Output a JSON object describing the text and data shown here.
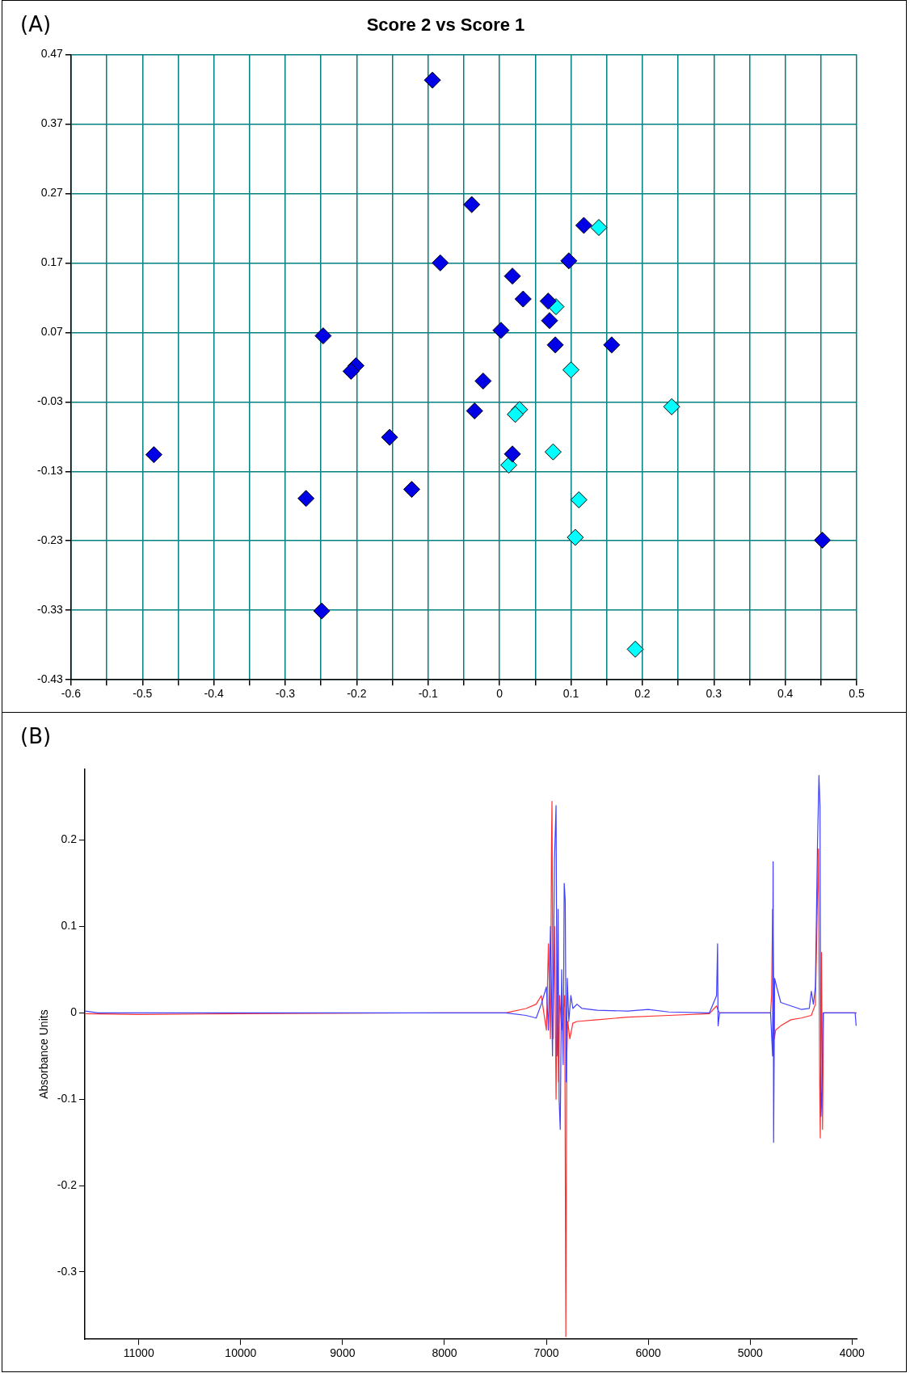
{
  "chart_data": [
    {
      "type": "scatter",
      "title": "Score 2 vs Score 1",
      "annotations": [
        "(A)"
      ],
      "marker": "diamond",
      "grid": true,
      "legend": false,
      "xlim": [
        -0.6,
        0.5
      ],
      "ylim": [
        -0.43,
        0.47
      ],
      "xticks": [
        -0.6,
        {
          "value": -0.55,
          "label": null
        },
        -0.5,
        {
          "value": -0.45,
          "label": null
        },
        -0.4,
        {
          "value": -0.35,
          "label": null
        },
        -0.3,
        {
          "value": -0.25,
          "label": null
        },
        -0.2,
        {
          "value": -0.15,
          "label": null
        },
        -0.1,
        {
          "value": -0.05,
          "label": null
        },
        0,
        {
          "value": 0.05,
          "label": null
        },
        0.1,
        {
          "value": 0.15,
          "label": null
        },
        0.2,
        {
          "value": 0.25,
          "label": null
        },
        0.3,
        {
          "value": 0.35,
          "label": null
        },
        0.4,
        {
          "value": 0.45,
          "label": null
        },
        0.5
      ],
      "yticks": [
        -0.43,
        -0.33,
        -0.23,
        -0.13,
        -0.03,
        0.07,
        0.17,
        0.27,
        0.37,
        0.47
      ],
      "series": [
        {
          "color": "#0000e6",
          "x": [
            -0.094,
            -0.039,
            -0.083,
            0.118,
            0.097,
            0.018,
            0.033,
            0.068,
            0.07,
            0.002,
            0.078,
            0.157,
            -0.247,
            -0.201,
            -0.208,
            -0.023,
            -0.035,
            -0.154,
            0.018,
            -0.484,
            -0.123,
            -0.271,
            0.452,
            -0.249
          ],
          "values": [
            0.433,
            0.254,
            0.17,
            0.224,
            0.173,
            0.151,
            0.118,
            0.115,
            0.087,
            0.073,
            0.052,
            0.052,
            0.065,
            0.022,
            0.014,
            0.0,
            -0.043,
            -0.081,
            -0.105,
            -0.106,
            -0.156,
            -0.169,
            -0.229,
            -0.331
          ]
        },
        {
          "color": "#00ffff",
          "x": [
            0.139,
            0.079,
            0.1,
            0.028,
            0.022,
            0.241,
            0.075,
            0.013,
            0.111,
            0.106,
            0.19
          ],
          "values": [
            0.221,
            0.107,
            0.016,
            -0.041,
            -0.048,
            -0.037,
            -0.102,
            -0.121,
            -0.171,
            -0.225,
            -0.386
          ]
        }
      ]
    },
    {
      "type": "line",
      "ylabel": "Absorbance Units",
      "annotations": [
        "(B)"
      ],
      "marker": "none",
      "grid": false,
      "legend": false,
      "xlim": [
        11530,
        3955
      ],
      "ylim": [
        -0.378,
        0.282
      ],
      "xticks": [
        11000,
        10000,
        9000,
        8000,
        7000,
        6000,
        5000,
        4000
      ],
      "yticks": [
        -0.3,
        -0.2,
        -0.1,
        0.0,
        0.1,
        0.2
      ],
      "series": [
        {
          "color": "#4040ff",
          "x": [
            11527,
            11400,
            10000,
            8000,
            7400,
            7200,
            7100,
            7050,
            7000,
            6980,
            6960,
            6940,
            6920,
            6905,
            6895,
            6885,
            6875,
            6864,
            6850,
            6835,
            6825,
            6815,
            6805,
            6795,
            6780,
            6760,
            6740,
            6700,
            6650,
            6500,
            6200,
            6000,
            5800,
            5400,
            5330,
            5320,
            5315,
            5300,
            4800,
            4780,
            4775,
            4770,
            4760,
            4740,
            4700,
            4600,
            4500,
            4420,
            4400,
            4380,
            4360,
            4340,
            4325,
            4315,
            4305,
            4295,
            4285,
            4200,
            3970,
            3960
          ],
          "values": [
            0.002,
            0,
            0,
            0,
            0,
            -0.003,
            -0.006,
            0.01,
            0.03,
            -0.02,
            0.1,
            -0.05,
            0.18,
            0.24,
            -0.05,
            0.12,
            -0.1,
            -0.135,
            0.05,
            -0.06,
            0.15,
            0.13,
            -0.08,
            0.04,
            -0.01,
            0.02,
            0.005,
            0.01,
            0.005,
            0.003,
            0.002,
            0.004,
            0.001,
            0,
            0.02,
            0.08,
            -0.015,
            0,
            0,
            -0.05,
            0.175,
            -0.15,
            0.04,
            0.03,
            0.012,
            0.008,
            0.004,
            0.005,
            0.025,
            0.01,
            0.03,
            0.19,
            0.275,
            0.24,
            -0.12,
            -0.09,
            0,
            0,
            0,
            -0.015
          ]
        },
        {
          "color": "#ff3030",
          "x": [
            11527,
            11000,
            10000,
            8000,
            7400,
            7200,
            7100,
            7050,
            7000,
            6980,
            6960,
            6950,
            6945,
            6935,
            6920,
            6905,
            6895,
            6880,
            6870,
            6850,
            6820,
            6809,
            6800,
            6790,
            6770,
            6740,
            6700,
            6500,
            6200,
            5800,
            5400,
            5330,
            5315,
            5300,
            4800,
            4790,
            4780,
            4763,
            4750,
            4700,
            4600,
            4500,
            4400,
            4360,
            4340,
            4330,
            4318,
            4312,
            4300,
            4290,
            4280,
            4200,
            3955
          ],
          "values": [
            -0.001,
            -0.002,
            -0.001,
            0,
            0,
            0.005,
            0.01,
            0.02,
            -0.02,
            0.08,
            -0.03,
            0.19,
            0.245,
            -0.03,
            0.1,
            -0.1,
            0.05,
            -0.08,
            0.02,
            -0.02,
            0.02,
            -0.375,
            -0.05,
            -0.01,
            -0.03,
            -0.012,
            -0.01,
            -0.008,
            -0.005,
            -0.003,
            -0.001,
            0.008,
            0.003,
            0,
            0,
            0.02,
            0.12,
            -0.03,
            -0.02,
            -0.015,
            -0.008,
            -0.006,
            -0.003,
            0.01,
            0.13,
            0.19,
            -0.08,
            -0.145,
            0.07,
            -0.135,
            0,
            0,
            0
          ]
        }
      ]
    }
  ]
}
